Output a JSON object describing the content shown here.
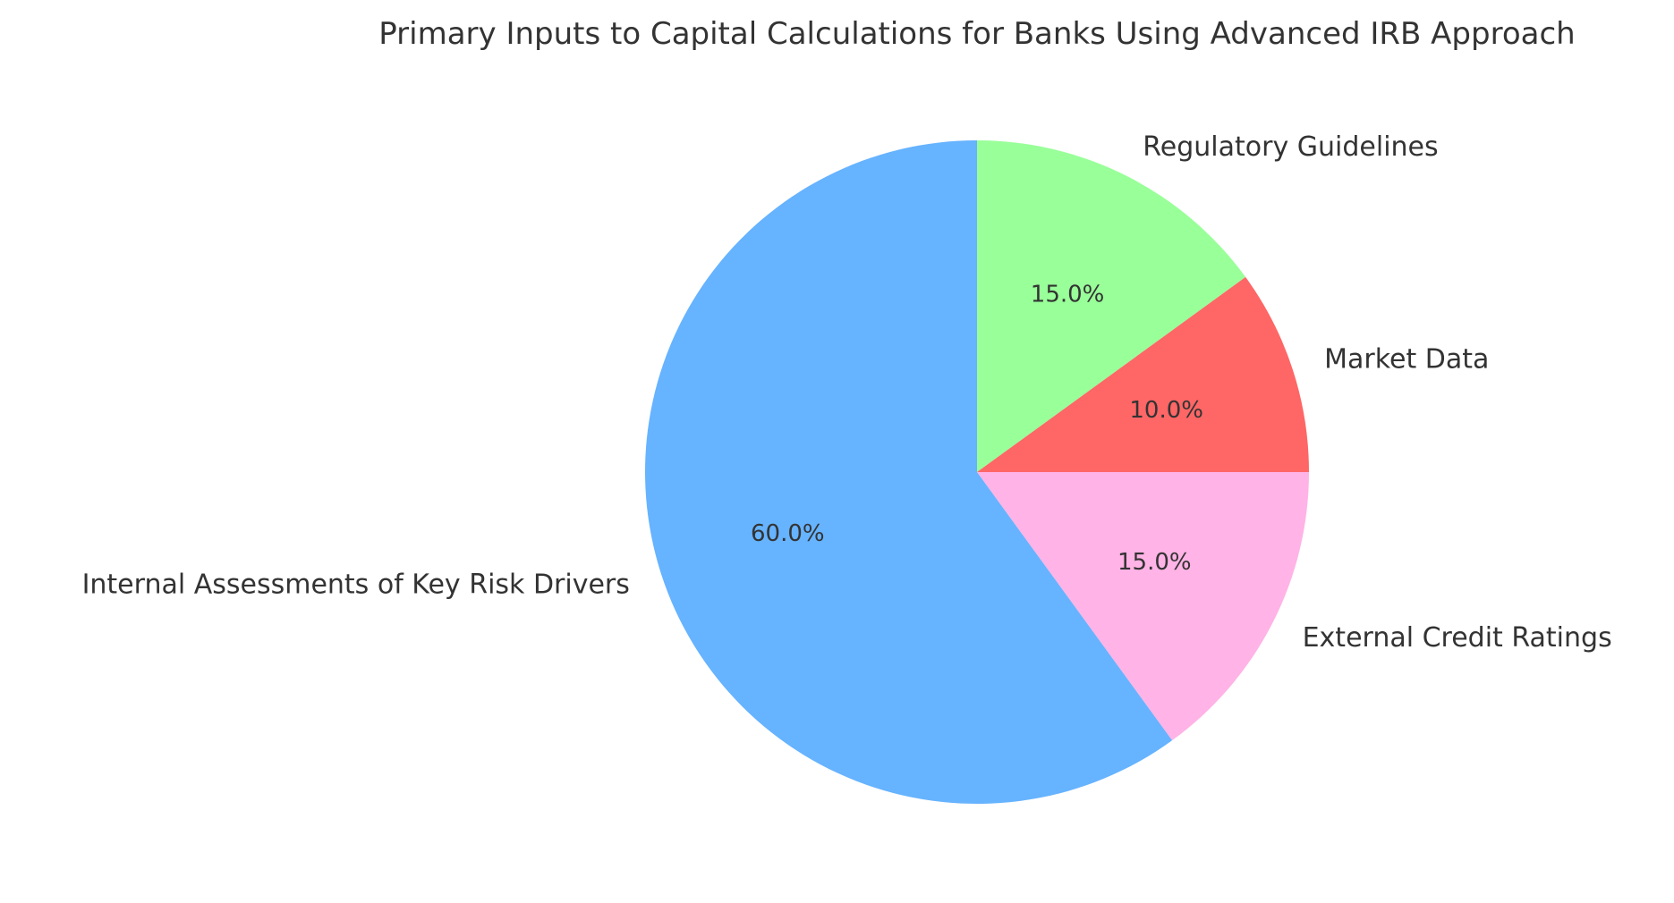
{
  "chart_data": {
    "type": "pie",
    "title": "Primary Inputs to Capital Calculations for Banks Using Advanced IRB Approach",
    "start_angle_deg": 90,
    "direction": "clockwise",
    "slices": [
      {
        "label": "Regulatory Guidelines",
        "value": 15.0,
        "pct_label": "15.0%",
        "color": "#99ff99"
      },
      {
        "label": "Market Data",
        "value": 10.0,
        "pct_label": "10.0%",
        "color": "#ff6666"
      },
      {
        "label": "External Credit Ratings",
        "value": 15.0,
        "pct_label": "15.0%",
        "color": "#ffb3e6"
      },
      {
        "label": "Internal Assessments of Key Risk Drivers",
        "value": 60.0,
        "pct_label": "60.0%",
        "color": "#66b3ff"
      }
    ]
  }
}
